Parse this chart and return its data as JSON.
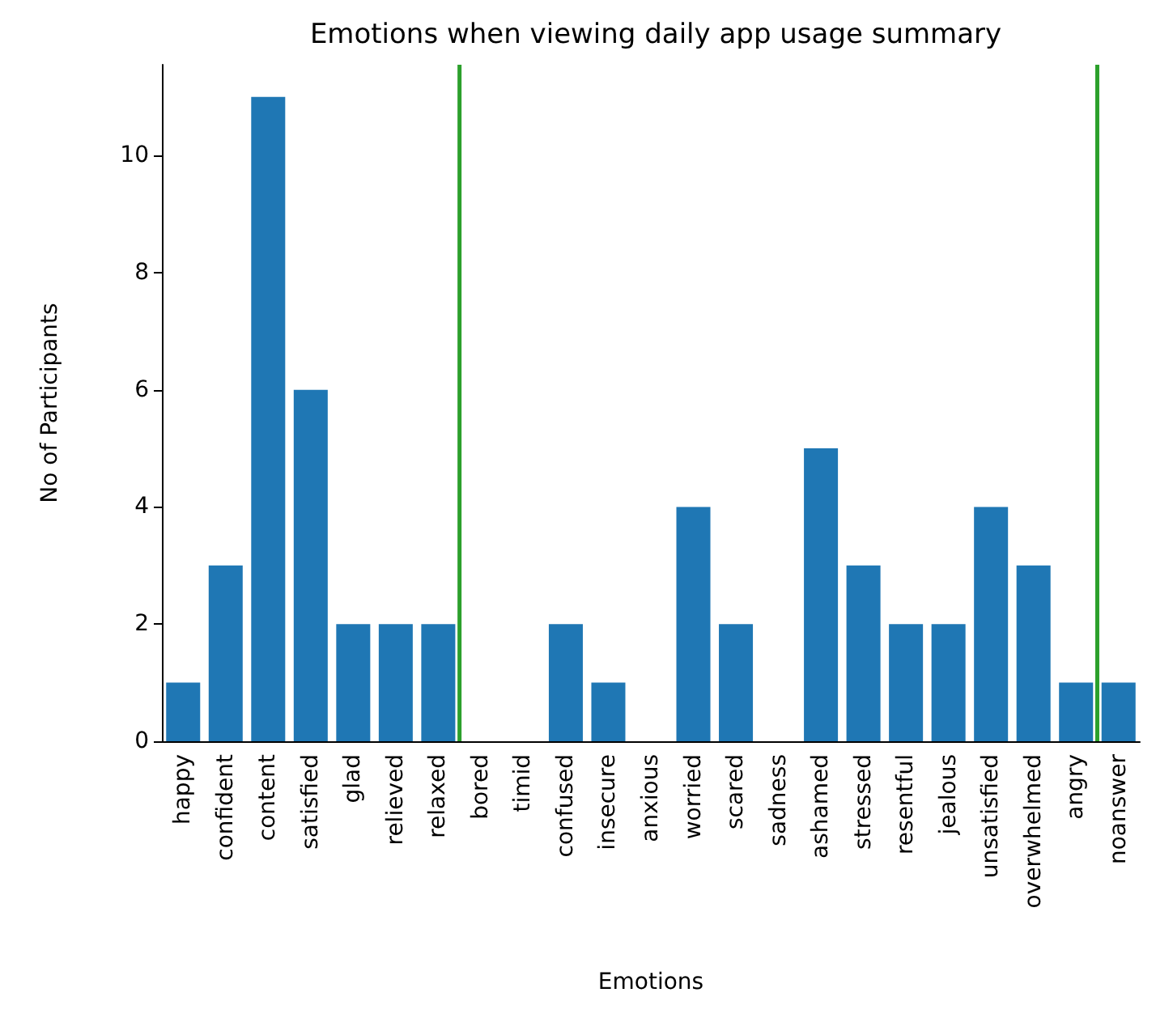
{
  "chart_data": {
    "type": "bar",
    "title": "Emotions when viewing daily app usage summary",
    "xlabel": "Emotions",
    "ylabel": "No of Participants",
    "categories": [
      "happy",
      "confident",
      "content",
      "satisfied",
      "glad",
      "relieved",
      "relaxed",
      "bored",
      "timid",
      "confused",
      "insecure",
      "anxious",
      "worried",
      "scared",
      "sadness",
      "ashamed",
      "stressed",
      "resentful",
      "jealous",
      "unsatisfied",
      "overwhelmed",
      "angry",
      "noanswer"
    ],
    "values": [
      1,
      3,
      11,
      6,
      2,
      2,
      2,
      0,
      0,
      2,
      1,
      0,
      4,
      2,
      0,
      5,
      3,
      2,
      2,
      4,
      3,
      1,
      1
    ],
    "color": "#1f77b4",
    "ylim": [
      0,
      11.55
    ],
    "yticks": [
      0,
      2,
      4,
      6,
      8,
      10
    ],
    "grid": false
  }
}
